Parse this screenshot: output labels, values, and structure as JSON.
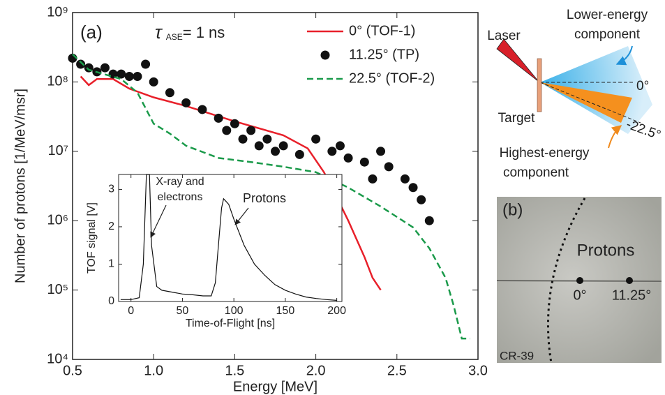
{
  "chart_data": [
    {
      "type": "line",
      "x_label": "Energy [MeV]",
      "y_label": "Number of protons [1/MeV/msr]",
      "annotations": [
        "(a)"
      ],
      "tau": {
        "symbol": "τ",
        "subscript": "ASE",
        "text": "= 1 ns"
      },
      "log_y": true,
      "legend": "upper right",
      "xlim": [
        0.5,
        3.0
      ],
      "xticks": [
        0.5,
        {
          "value": 1,
          "label": "1.0"
        },
        1.5,
        {
          "value": 2,
          "label": "2.0"
        },
        2.5,
        {
          "value": 3,
          "label": "3.0"
        }
      ],
      "ylim": [
        10000,
        1000000000
      ],
      "yticks": [
        {
          "value": 10000,
          "label": "10⁴"
        },
        {
          "value": 100000,
          "label": "10⁵"
        },
        {
          "value": 1000000,
          "label": "10⁶"
        },
        {
          "value": 10000000,
          "label": "10⁷"
        },
        {
          "value": 100000000,
          "label": "10⁸"
        },
        {
          "value": 1000000000,
          "label": "10⁹"
        }
      ],
      "series": [
        {
          "name": "0° (TOF-1)",
          "color": "#e8202a",
          "style": "solid",
          "x": [
            0.55,
            0.6,
            0.65,
            0.75,
            0.85,
            1.0,
            1.2,
            1.5,
            1.8,
            1.95,
            2.05,
            2.1,
            2.2,
            2.3,
            2.35,
            2.4
          ],
          "values": [
            120000000,
            90000000,
            110000000,
            110000000,
            80000000,
            60000000,
            45000000,
            27000000,
            17000000,
            11000000,
            5000000,
            3000000,
            1000000,
            300000,
            150000,
            100000
          ]
        },
        {
          "name": "11.25° (TP)",
          "color": "#111111",
          "style": "dots",
          "x": [
            0.5,
            0.55,
            0.6,
            0.65,
            0.7,
            0.75,
            0.8,
            0.85,
            0.9,
            0.95,
            1.0,
            1.1,
            1.2,
            1.3,
            1.4,
            1.45,
            1.5,
            1.55,
            1.6,
            1.65,
            1.7,
            1.75,
            1.8,
            1.9,
            2.0,
            2.1,
            2.15,
            2.2,
            2.3,
            2.35,
            2.4,
            2.45,
            2.55,
            2.6,
            2.65,
            2.7
          ],
          "values": [
            220000000,
            180000000,
            160000000,
            140000000,
            160000000,
            130000000,
            130000000,
            120000000,
            120000000,
            180000000,
            100000000,
            70000000,
            50000000,
            40000000,
            30000000,
            20000000,
            25000000,
            15000000,
            20000000,
            12000000,
            15000000,
            10000000,
            12000000,
            9000000,
            15000000,
            10000000,
            12000000,
            8000000,
            7000000,
            4000000,
            10000000,
            6000000,
            4000000,
            3000000,
            2000000,
            1000000
          ]
        },
        {
          "name": "22.5° (TOF-2)",
          "color": "#1a9a4a",
          "style": "dashed",
          "x": [
            0.5,
            0.6,
            0.8,
            0.9,
            1.0,
            1.1,
            1.2,
            1.4,
            1.6,
            1.8,
            2.0,
            2.2,
            2.4,
            2.6,
            2.7,
            2.8,
            2.85,
            2.9,
            2.95
          ],
          "values": [
            250000000,
            150000000,
            110000000,
            70000000,
            25000000,
            18000000,
            12000000,
            8000000,
            7000000,
            6000000,
            5000000,
            3000000,
            1600000,
            800000,
            400000,
            150000,
            60000,
            20000,
            20000
          ]
        }
      ]
    },
    {
      "type": "line",
      "x_label": "Time-of-Flight [ns]",
      "y_label": "TOF signal [V]",
      "annotations": [
        "X-ray and",
        "electrons",
        "Protons"
      ],
      "color": "#111111",
      "xlim": [
        -12,
        205
      ],
      "xticks": [
        0,
        50,
        100,
        150,
        200
      ],
      "ylim": [
        0,
        3.4
      ],
      "yticks": [
        0,
        1,
        2,
        3
      ],
      "x": [
        -10,
        0,
        8,
        12,
        15,
        18,
        20,
        25,
        30,
        40,
        50,
        60,
        70,
        78,
        82,
        85,
        88,
        90,
        95,
        100,
        110,
        120,
        130,
        140,
        150,
        160,
        170,
        180,
        190,
        200
      ],
      "values": [
        0.05,
        0.05,
        0.1,
        1,
        3.4,
        3.4,
        1.5,
        0.4,
        0.3,
        0.25,
        0.2,
        0.18,
        0.15,
        0.15,
        0.5,
        1.5,
        2.5,
        2.75,
        2.6,
        2.2,
        1.5,
        1,
        0.7,
        0.45,
        0.3,
        0.2,
        0.12,
        0.08,
        0.05,
        0.03
      ]
    }
  ],
  "diagram": {
    "laser": "Laser",
    "lower": [
      "Lower-energy",
      "component"
    ],
    "zero": "0°",
    "target": "Target",
    "angle": "-22.5°",
    "highest": [
      "Highest-energy",
      "component"
    ]
  },
  "photo": {
    "label": "(b)",
    "protons": "Protons",
    "zero": "0°",
    "angle": "11.25°",
    "detector": "CR-39"
  }
}
